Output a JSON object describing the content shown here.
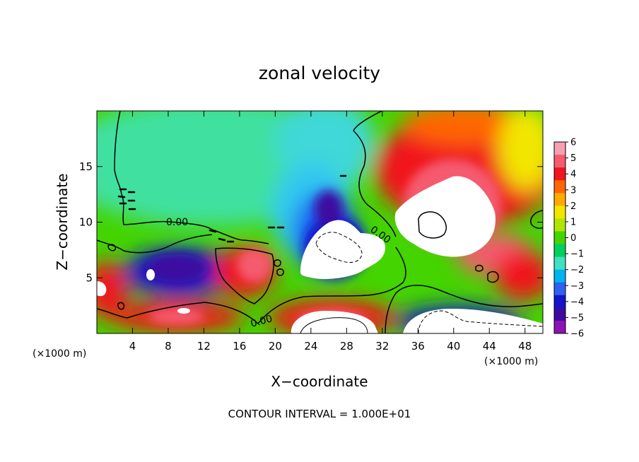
{
  "chart_data": {
    "type": "heatmap",
    "title": "zonal velocity",
    "xlabel": "X−coordinate",
    "ylabel": "Z−coordinate",
    "x_unit": "(×1000 m)",
    "y_unit": "(×1000 m)",
    "xlim": [
      0,
      50
    ],
    "ylim": [
      0,
      20
    ],
    "x_ticks": [
      4,
      8,
      12,
      16,
      20,
      24,
      28,
      32,
      36,
      40,
      44,
      48
    ],
    "y_ticks": [
      5,
      10,
      15
    ],
    "colorbar": {
      "min": -6,
      "max": 6,
      "ticks": [
        "6",
        "5",
        "4",
        "3",
        "2",
        "1",
        "0",
        "−1",
        "−2",
        "−3",
        "−4",
        "−5",
        "−6"
      ],
      "colors_high_to_low": [
        "#f7a0b0",
        "#f55a6e",
        "#f0141e",
        "#ff6600",
        "#ffaa00",
        "#f2e600",
        "#aee600",
        "#44d400",
        "#00d060",
        "#40e0c0",
        "#00b4f0",
        "#3060f0",
        "#1414c8",
        "#3c0aa0",
        "#8c14b4"
      ],
      "out_of_range_color": "#ffffff"
    },
    "contour_labels": [
      "0.00",
      "0.00",
      "0.00"
    ],
    "contour_interval_text": "CONTOUR INTERVAL = 1.000E+01"
  }
}
